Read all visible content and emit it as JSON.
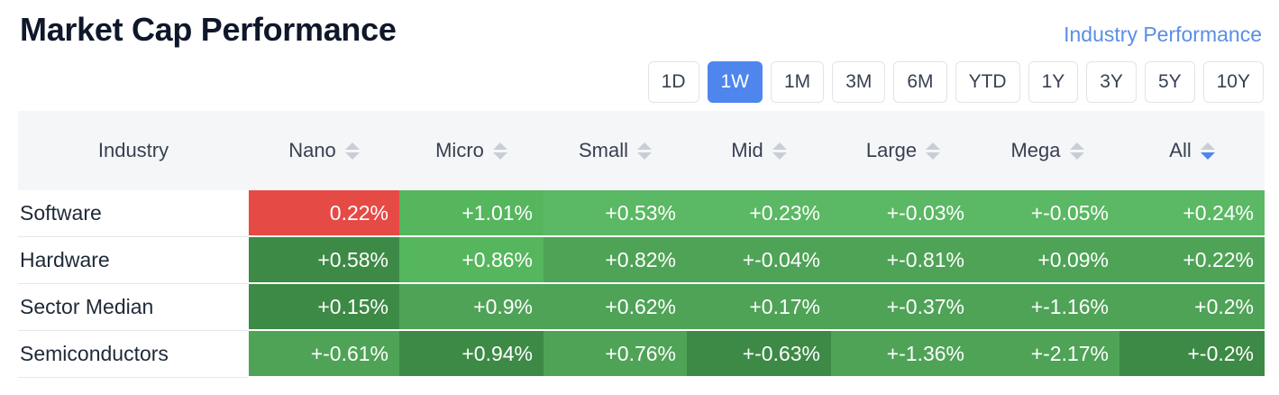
{
  "header": {
    "title": "Market Cap Performance",
    "industry_link": "Industry Performance"
  },
  "periods": [
    "1D",
    "1W",
    "1M",
    "3M",
    "6M",
    "YTD",
    "1Y",
    "3Y",
    "5Y",
    "10Y"
  ],
  "active_period": "1W",
  "table": {
    "columns": [
      "Industry",
      "Nano",
      "Micro",
      "Small",
      "Mid",
      "Large",
      "Mega",
      "All"
    ],
    "active_sort_column": "All",
    "rows": [
      {
        "industry": "Software",
        "values": [
          "0.22%",
          "+1.01%",
          "+0.53%",
          "+0.23%",
          "+-0.03%",
          "+-0.05%",
          "+0.24%"
        ]
      },
      {
        "industry": "Hardware",
        "values": [
          "+0.58%",
          "+0.86%",
          "+0.82%",
          "+-0.04%",
          "+-0.81%",
          "+0.09%",
          "+0.22%"
        ]
      },
      {
        "industry": "Sector Median",
        "values": [
          "+0.15%",
          "+0.9%",
          "+0.62%",
          "+0.17%",
          "+-0.37%",
          "+-1.16%",
          "+0.2%"
        ]
      },
      {
        "industry": "Semiconductors",
        "values": [
          "+-0.61%",
          "+0.94%",
          "+0.76%",
          "+-0.63%",
          "+-1.36%",
          "+-2.17%",
          "+-0.2%"
        ]
      }
    ],
    "cell_colors": [
      [
        "#e64a45",
        "#55b65d",
        "#5bb864",
        "#5bb864",
        "#5bb864",
        "#5bb864",
        "#5bb864"
      ],
      [
        "#3d8a46",
        "#55b65d",
        "#4fa357",
        "#4fa357",
        "#4fa357",
        "#4fa357",
        "#4fa357"
      ],
      [
        "#3d8a46",
        "#4fa357",
        "#4fa357",
        "#4fa357",
        "#4fa357",
        "#4fa357",
        "#4fa357"
      ],
      [
        "#4fa357",
        "#3d8a46",
        "#4fa357",
        "#3d8a46",
        "#4fa357",
        "#4fa357",
        "#3d8a46"
      ]
    ]
  },
  "colors": {
    "accent": "#4e86ee",
    "positive_light": "#5bb864",
    "positive_mid": "#4fa357",
    "positive_dark": "#3d8a46",
    "negative": "#e64a45"
  }
}
